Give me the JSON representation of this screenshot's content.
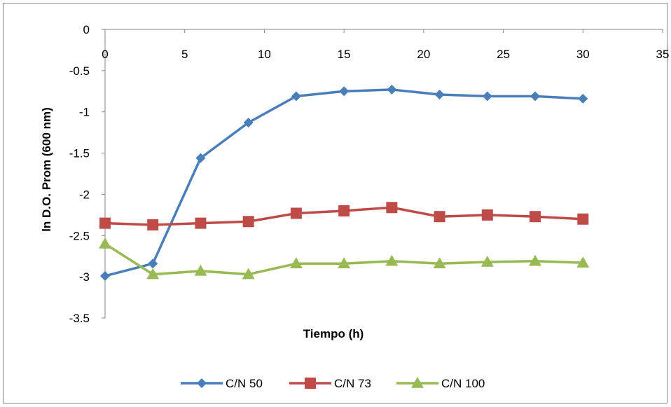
{
  "chart_data": {
    "type": "line",
    "title": "",
    "xlabel": "Tiempo (h)",
    "ylabel": "ln D.O. Prom (600 nm)",
    "xlim": [
      0,
      35
    ],
    "ylim": [
      -3.5,
      0
    ],
    "x_ticks": [
      0,
      5,
      10,
      15,
      20,
      25,
      30,
      35
    ],
    "x_tick_labels": [
      "0",
      "5",
      "10",
      "15",
      "20",
      "25",
      "30",
      "35"
    ],
    "y_ticks": [
      0,
      -0.5,
      -1,
      -1.5,
      -2,
      -2.5,
      -3,
      -3.5
    ],
    "y_tick_labels": [
      "0",
      "-0.5",
      "-1",
      "-1.5",
      "-2",
      "-2.5",
      "-3",
      "-3.5"
    ],
    "grid": false,
    "legend_position": "bottom",
    "x": [
      0,
      3,
      6,
      9,
      12,
      15,
      18,
      21,
      24,
      27,
      30
    ],
    "series": [
      {
        "name": "C/N 50",
        "color": "#4a7ebb",
        "marker": "diamond",
        "values": [
          -2.99,
          -2.84,
          -1.56,
          -1.13,
          -0.81,
          -0.75,
          -0.73,
          -0.79,
          -0.81,
          -0.81,
          -0.84
        ]
      },
      {
        "name": "C/N 73",
        "color": "#be4b48",
        "marker": "square",
        "values": [
          -2.35,
          -2.37,
          -2.35,
          -2.33,
          -2.23,
          -2.2,
          -2.16,
          -2.27,
          -2.25,
          -2.27,
          -2.3
        ]
      },
      {
        "name": "C/N 100",
        "color": "#98b954",
        "marker": "triangle",
        "values": [
          -2.6,
          -2.97,
          -2.93,
          -2.97,
          -2.84,
          -2.84,
          -2.81,
          -2.84,
          -2.82,
          -2.81,
          -2.83
        ]
      }
    ]
  }
}
